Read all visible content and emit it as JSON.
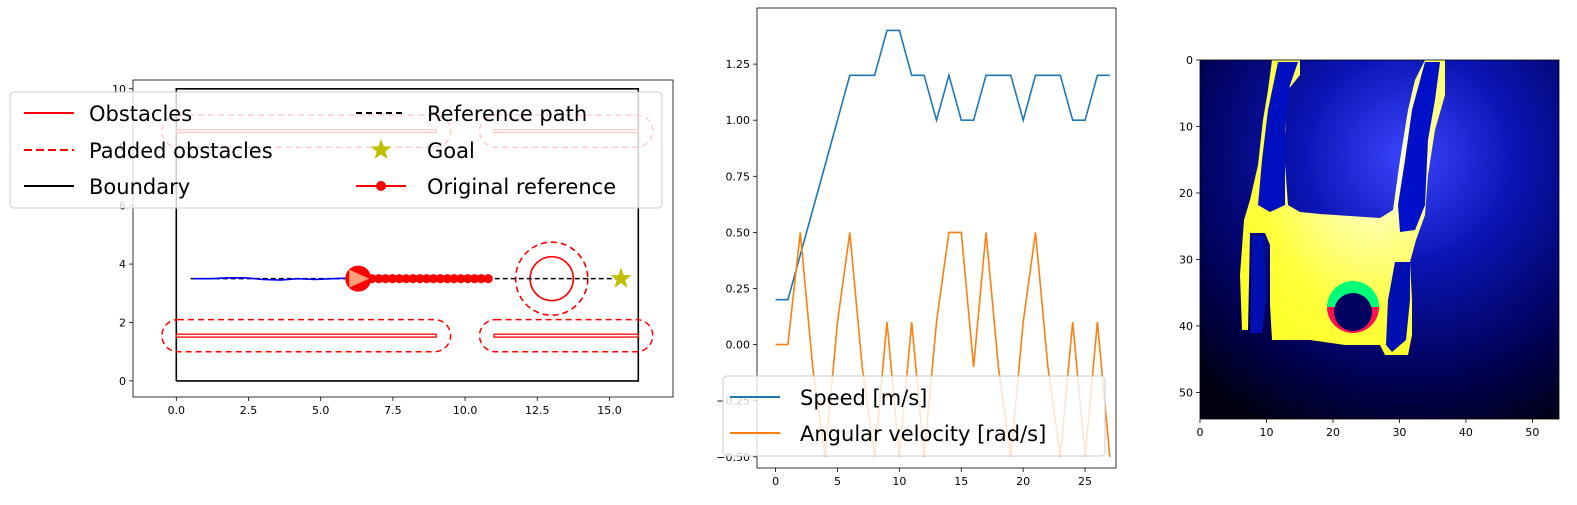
{
  "chart_data": [
    {
      "type": "line",
      "xlim": [
        -1.5,
        17.2
      ],
      "ylim": [
        -0.55,
        10.3
      ],
      "xticks": [
        "0.0",
        "2.5",
        "5.0",
        "7.5",
        "10.0",
        "12.5",
        "15.0"
      ],
      "yticks": [
        "0",
        "2",
        "4",
        "6",
        "8",
        "10"
      ],
      "legend_position": "upper-left",
      "colors": {
        "obstacle": "#ff0000",
        "reference": "#000000",
        "trajectory": "#0000ff",
        "goal": "#bfbf00"
      },
      "legend": [
        {
          "key": "obstacles",
          "label": "Obstacles"
        },
        {
          "key": "padded",
          "label": "Padded obstacles"
        },
        {
          "key": "boundary",
          "label": "Boundary"
        },
        {
          "key": "reference",
          "label": "Reference path"
        },
        {
          "key": "goal",
          "label": "Goal"
        },
        {
          "key": "original",
          "label": "Original reference"
        }
      ],
      "boundary": [
        [
          0,
          0
        ],
        [
          16,
          0
        ],
        [
          16,
          10
        ],
        [
          0,
          10
        ]
      ],
      "obstacles": [
        {
          "x0": 0,
          "x1": 9,
          "y0": 1.5,
          "y1": 1.6
        },
        {
          "x0": 11,
          "x1": 16,
          "y0": 1.5,
          "y1": 1.6
        },
        {
          "x0": 0,
          "x1": 9,
          "y0": 8.5,
          "y1": 8.6
        },
        {
          "x0": 11,
          "x1": 16,
          "y0": 8.5,
          "y1": 8.6
        }
      ],
      "circle_obstacle": {
        "cx": 13,
        "cy": 3.5,
        "r": 0.75,
        "padded_r": 1.25
      },
      "padding": 0.5,
      "reference_path": {
        "x0": 0.5,
        "x1": 15.5,
        "y": 3.5
      },
      "goal": {
        "x": 15.4,
        "y": 3.5
      },
      "original_reference": {
        "x_start": 6.3,
        "x_end": 10.8,
        "count": 20,
        "y": 3.5
      },
      "robot": {
        "x": 6.3,
        "y": 3.5
      },
      "trajectory": [
        [
          0.6,
          3.5
        ],
        [
          1.2,
          3.5
        ],
        [
          1.8,
          3.53
        ],
        [
          2.4,
          3.53
        ],
        [
          3.0,
          3.47
        ],
        [
          3.6,
          3.45
        ],
        [
          4.2,
          3.5
        ],
        [
          4.8,
          3.47
        ],
        [
          5.4,
          3.5
        ],
        [
          6.0,
          3.52
        ],
        [
          6.3,
          3.5
        ]
      ]
    },
    {
      "type": "line",
      "xlim": [
        -1.5,
        27.5
      ],
      "ylim": [
        -0.55,
        1.5
      ],
      "xticks": [
        "0",
        "5",
        "10",
        "15",
        "20",
        "25"
      ],
      "yticks": [
        "−0.50",
        "−0.25",
        "0.00",
        "0.25",
        "0.50",
        "0.75",
        "1.00",
        "1.25"
      ],
      "legend_position": "lower-left",
      "x": [
        0,
        1,
        2,
        3,
        4,
        5,
        6,
        7,
        8,
        9,
        10,
        11,
        12,
        13,
        14,
        15,
        16,
        17,
        18,
        19,
        20,
        21,
        22,
        23,
        24,
        25,
        26,
        27
      ],
      "series": [
        {
          "name": "Speed [m/s]",
          "color": "#1f77b4",
          "values": [
            0.2,
            0.2,
            0.4,
            0.6,
            0.8,
            1.0,
            1.2,
            1.2,
            1.2,
            1.4,
            1.4,
            1.2,
            1.2,
            1.0,
            1.2,
            1.0,
            1.0,
            1.2,
            1.2,
            1.2,
            1.0,
            1.2,
            1.2,
            1.2,
            1.0,
            1.0,
            1.2,
            1.2
          ]
        },
        {
          "name": "Angular velocity [rad/s]",
          "color": "#ff7f0e",
          "values": [
            0.0,
            0.0,
            0.5,
            -0.1,
            -0.5,
            0.1,
            0.5,
            -0.1,
            -0.5,
            0.1,
            -0.5,
            0.1,
            -0.5,
            0.1,
            0.5,
            0.5,
            -0.1,
            0.5,
            -0.1,
            -0.5,
            0.1,
            0.5,
            -0.1,
            -0.5,
            0.1,
            -0.5,
            0.1,
            -0.5
          ]
        }
      ]
    },
    {
      "type": "heatmap",
      "xlim": [
        0,
        54
      ],
      "ylim": [
        54,
        0
      ],
      "xticks": [
        "0",
        "10",
        "20",
        "30",
        "40",
        "50"
      ],
      "yticks": [
        "0",
        "10",
        "20",
        "30",
        "40",
        "50"
      ],
      "colors": {
        "free": "#ffff3c",
        "obstacle": "#0000c0",
        "background": "#000040",
        "ring_top": "#00ff80",
        "ring_bottom": "#ff1050"
      }
    }
  ]
}
